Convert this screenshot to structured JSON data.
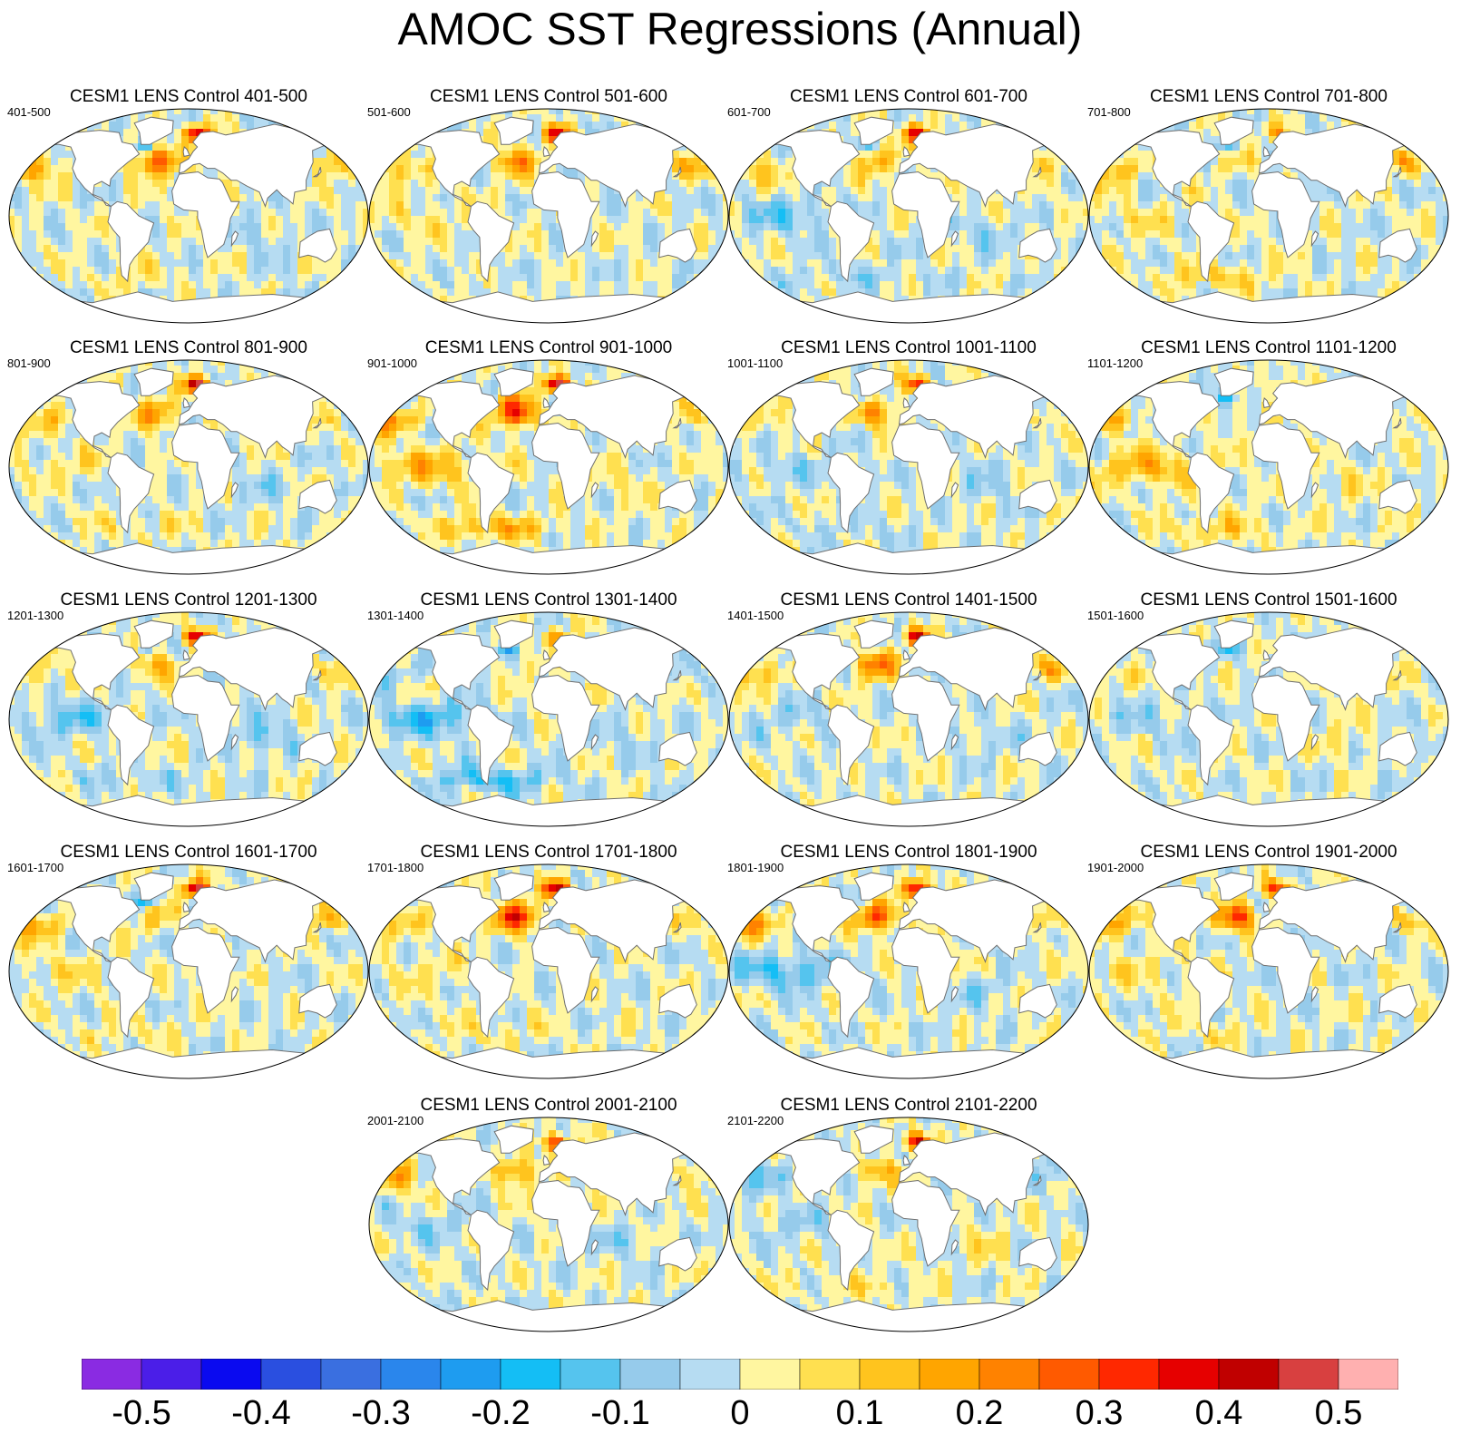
{
  "title": "AMOC SST Regressions (Annual)",
  "chart_data": {
    "type": "heatmap",
    "description_units": "SST regression on AMOC",
    "colorbar": {
      "levels": [
        -0.55,
        -0.5,
        -0.45,
        -0.4,
        -0.35,
        -0.3,
        -0.25,
        -0.2,
        -0.15,
        -0.1,
        -0.05,
        0,
        0.05,
        0.1,
        0.15,
        0.2,
        0.25,
        0.3,
        0.35,
        0.4,
        0.45,
        0.5,
        0.55
      ],
      "colors": [
        "#8a2be2",
        "#4b1ee8",
        "#0a0af0",
        "#2a4fe0",
        "#3a6fe0",
        "#2a86ec",
        "#1e9cf0",
        "#14bef5",
        "#55c4ee",
        "#96cbeb",
        "#b6dcf2",
        "#fff6a0",
        "#ffe050",
        "#ffc41e",
        "#ffa500",
        "#ff8200",
        "#ff5a00",
        "#ff2800",
        "#e60000",
        "#c00000",
        "#d84040",
        "#ffb0b0"
      ],
      "tick_labels": [
        "-0.5",
        "-0.4",
        "-0.3",
        "-0.2",
        "-0.1",
        "0",
        "0.1",
        "0.2",
        "0.3",
        "0.4",
        "0.5"
      ],
      "tick_values": [
        -0.5,
        -0.4,
        -0.3,
        -0.2,
        -0.1,
        0,
        0.1,
        0.2,
        0.3,
        0.4,
        0.5
      ]
    },
    "panels": [
      {
        "title": "CESM1 LENS Control 401-500",
        "label": "401-500",
        "pattern": {
          "natl": 0.3,
          "nord": 0.45,
          "trop": 0.0,
          "npac": 0.15,
          "so": 0.05,
          "lab": -0.15,
          "io": -0.05
        }
      },
      {
        "title": "CESM1 LENS Control 501-600",
        "label": "501-600",
        "pattern": {
          "natl": 0.2,
          "nord": 0.4,
          "trop": 0.05,
          "npac": 0.15,
          "so": 0.0,
          "lab": 0.0,
          "io": 0.0
        }
      },
      {
        "title": "CESM1 LENS Control 601-700",
        "label": "601-700",
        "pattern": {
          "natl": 0.15,
          "nord": 0.4,
          "trop": -0.1,
          "npac": 0.1,
          "so": -0.05,
          "lab": -0.1,
          "io": -0.05
        }
      },
      {
        "title": "CESM1 LENS Control 701-800",
        "label": "701-800",
        "pattern": {
          "natl": 0.05,
          "nord": 0.15,
          "trop": 0.05,
          "npac": 0.15,
          "so": 0.1,
          "lab": -0.15,
          "io": 0.0
        }
      },
      {
        "title": "CESM1 LENS Control 801-900",
        "label": "801-900",
        "pattern": {
          "natl": 0.2,
          "nord": 0.45,
          "trop": 0.05,
          "npac": 0.1,
          "so": 0.05,
          "lab": 0.0,
          "io": -0.05
        }
      },
      {
        "title": "CESM1 LENS Control 901-1000",
        "label": "901-1000",
        "pattern": {
          "natl": 0.35,
          "nord": 0.5,
          "trop": 0.15,
          "npac": 0.15,
          "so": 0.15,
          "lab": 0.05,
          "io": 0.05
        }
      },
      {
        "title": "CESM1 LENS Control 1001-1100",
        "label": "1001-1100",
        "pattern": {
          "natl": 0.2,
          "nord": 0.35,
          "trop": -0.05,
          "npac": 0.05,
          "so": -0.05,
          "lab": -0.1,
          "io": -0.05
        }
      },
      {
        "title": "CESM1 LENS Control 1101-1200",
        "label": "1101-1200",
        "pattern": {
          "natl": 0.05,
          "nord": 0.1,
          "trop": 0.15,
          "npac": 0.1,
          "so": 0.1,
          "lab": -0.2,
          "io": 0.05
        }
      },
      {
        "title": "CESM1 LENS Control 1201-1300",
        "label": "1201-1300",
        "pattern": {
          "natl": 0.15,
          "nord": 0.4,
          "trop": -0.1,
          "npac": 0.1,
          "so": -0.05,
          "lab": -0.1,
          "io": -0.1
        }
      },
      {
        "title": "CESM1 LENS Control 1301-1400",
        "label": "1301-1400",
        "pattern": {
          "natl": 0.05,
          "nord": 0.2,
          "trop": -0.15,
          "npac": -0.05,
          "so": -0.15,
          "lab": -0.15,
          "io": -0.05
        }
      },
      {
        "title": "CESM1 LENS Control 1401-1500",
        "label": "1401-1500",
        "pattern": {
          "natl": 0.25,
          "nord": 0.4,
          "trop": -0.05,
          "npac": 0.15,
          "so": 0.0,
          "lab": -0.05,
          "io": -0.05
        }
      },
      {
        "title": "CESM1 LENS Control 1501-1600",
        "label": "1501-1600",
        "pattern": {
          "natl": 0.0,
          "nord": -0.05,
          "trop": -0.05,
          "npac": 0.05,
          "so": 0.0,
          "lab": -0.15,
          "io": 0.05
        }
      },
      {
        "title": "CESM1 LENS Control 1601-1700",
        "label": "1601-1700",
        "pattern": {
          "natl": 0.1,
          "nord": 0.45,
          "trop": 0.05,
          "npac": 0.15,
          "so": 0.05,
          "lab": -0.2,
          "io": 0.0
        }
      },
      {
        "title": "CESM1 LENS Control 1701-1800",
        "label": "1701-1800",
        "pattern": {
          "natl": 0.35,
          "nord": 0.45,
          "trop": 0.05,
          "npac": 0.1,
          "so": 0.05,
          "lab": 0.0,
          "io": 0.0
        }
      },
      {
        "title": "CESM1 LENS Control 1801-1900",
        "label": "1801-1900",
        "pattern": {
          "natl": 0.3,
          "nord": 0.45,
          "trop": -0.15,
          "npac": 0.15,
          "so": 0.0,
          "lab": -0.05,
          "io": -0.05
        }
      },
      {
        "title": "CESM1 LENS Control 1901-2000",
        "label": "1901-2000",
        "pattern": {
          "natl": 0.3,
          "nord": 0.35,
          "trop": 0.05,
          "npac": 0.15,
          "so": 0.05,
          "lab": -0.05,
          "io": 0.0
        }
      },
      {
        "title": "CESM1 LENS Control 2001-2100",
        "label": "2001-2100",
        "pattern": {
          "natl": 0.2,
          "nord": 0.35,
          "trop": -0.05,
          "npac": 0.15,
          "so": 0.0,
          "lab": -0.05,
          "io": -0.05
        }
      },
      {
        "title": "CESM1 LENS Control 2101-2200",
        "label": "2101-2200",
        "pattern": {
          "natl": 0.15,
          "nord": 0.4,
          "trop": -0.05,
          "npac": -0.1,
          "so": 0.05,
          "lab": -0.1,
          "io": 0.05
        }
      }
    ]
  }
}
